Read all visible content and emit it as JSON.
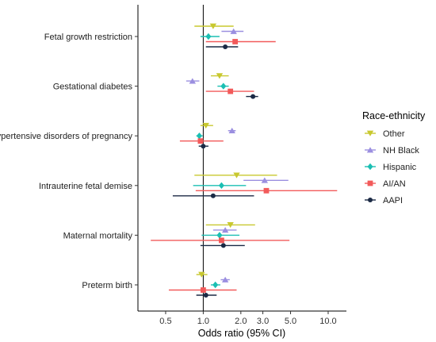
{
  "chart_data": {
    "type": "forest",
    "xlabel": "Odds ratio (95% CI)",
    "x_scale": "log",
    "xlim": [
      0.3,
      14
    ],
    "x_ticks": [
      {
        "value": 0.5,
        "label": "0.5"
      },
      {
        "value": 1.0,
        "label": "1.0"
      },
      {
        "value": 2.0,
        "label": "2.0"
      },
      {
        "value": 3.0,
        "label": "3.0"
      },
      {
        "value": 5.0,
        "label": "5.0"
      },
      {
        "value": 10.0,
        "label": "10.0"
      }
    ],
    "reference_line": 1.0,
    "grid": false,
    "legend": {
      "title": "Race-ethnicity",
      "placement": "right",
      "entries": [
        {
          "name": "Other",
          "color": "#C8C82F",
          "marker": "triangle-down"
        },
        {
          "name": "NH Black",
          "color": "#9B8FE0",
          "marker": "triangle-up"
        },
        {
          "name": "Hispanic",
          "color": "#1BBFB3",
          "marker": "diamond"
        },
        {
          "name": "AI/AN",
          "color": "#F25A5A",
          "marker": "square"
        },
        {
          "name": "AAPI",
          "color": "#1B2A45",
          "marker": "circle"
        }
      ]
    },
    "outcomes": [
      {
        "label": "Fetal growth restriction",
        "estimates": [
          {
            "group": "Other",
            "or": 1.2,
            "lower": 0.85,
            "upper": 1.75
          },
          {
            "group": "NH Black",
            "or": 1.75,
            "lower": 1.4,
            "upper": 2.1
          },
          {
            "group": "Hispanic",
            "or": 1.1,
            "lower": 0.95,
            "upper": 1.35
          },
          {
            "group": "AI/AN",
            "or": 1.8,
            "lower": 1.05,
            "upper": 3.8
          },
          {
            "group": "AAPI",
            "or": 1.5,
            "lower": 1.05,
            "upper": 1.9
          }
        ]
      },
      {
        "label": "Gestational diabetes",
        "estimates": [
          {
            "group": "Other",
            "or": 1.35,
            "lower": 1.15,
            "upper": 1.6
          },
          {
            "group": "NH Black",
            "or": 0.82,
            "lower": 0.73,
            "upper": 0.93
          },
          {
            "group": "Hispanic",
            "or": 1.45,
            "lower": 1.3,
            "upper": 1.6
          },
          {
            "group": "AI/AN",
            "or": 1.65,
            "lower": 1.05,
            "upper": 2.55
          },
          {
            "group": "AAPI",
            "or": 2.5,
            "lower": 2.2,
            "upper": 2.75
          }
        ]
      },
      {
        "label": "Hypertensive disorders of pregnancy",
        "estimates": [
          {
            "group": "Other",
            "or": 1.05,
            "lower": 0.95,
            "upper": 1.2
          },
          {
            "group": "NH Black",
            "or": 1.7,
            "lower": 1.58,
            "upper": 1.82
          },
          {
            "group": "Hispanic",
            "or": 0.93,
            "lower": 0.88,
            "upper": 0.99
          },
          {
            "group": "AI/AN",
            "or": 0.95,
            "lower": 0.65,
            "upper": 1.45
          },
          {
            "group": "AAPI",
            "or": 1.0,
            "lower": 0.92,
            "upper": 1.1
          }
        ]
      },
      {
        "label": "Intrauterine fetal demise",
        "estimates": [
          {
            "group": "Other",
            "or": 1.85,
            "lower": 0.85,
            "upper": 3.9
          },
          {
            "group": "NH Black",
            "or": 3.1,
            "lower": 2.1,
            "upper": 4.8
          },
          {
            "group": "Hispanic",
            "or": 1.4,
            "lower": 0.83,
            "upper": 2.2
          },
          {
            "group": "AI/AN",
            "or": 3.2,
            "lower": 0.87,
            "upper": 11.8
          },
          {
            "group": "AAPI",
            "or": 1.2,
            "lower": 0.57,
            "upper": 2.55
          }
        ]
      },
      {
        "label": "Maternal mortality",
        "estimates": [
          {
            "group": "Other",
            "or": 1.65,
            "lower": 1.05,
            "upper": 2.6
          },
          {
            "group": "NH Black",
            "or": 1.5,
            "lower": 1.2,
            "upper": 1.85
          },
          {
            "group": "Hispanic",
            "or": 1.35,
            "lower": 0.97,
            "upper": 1.95
          },
          {
            "group": "AI/AN",
            "or": 1.4,
            "lower": 0.38,
            "upper": 4.9
          },
          {
            "group": "AAPI",
            "or": 1.45,
            "lower": 0.95,
            "upper": 2.15
          }
        ]
      },
      {
        "label": "Preterm birth",
        "estimates": [
          {
            "group": "Other",
            "or": 0.97,
            "lower": 0.88,
            "upper": 1.08
          },
          {
            "group": "NH Black",
            "or": 1.5,
            "lower": 1.38,
            "upper": 1.63
          },
          {
            "group": "Hispanic",
            "or": 1.25,
            "lower": 1.15,
            "upper": 1.37
          },
          {
            "group": "AI/AN",
            "or": 1.0,
            "lower": 0.53,
            "upper": 1.85
          },
          {
            "group": "AAPI",
            "or": 1.05,
            "lower": 0.88,
            "upper": 1.28
          }
        ]
      }
    ]
  }
}
